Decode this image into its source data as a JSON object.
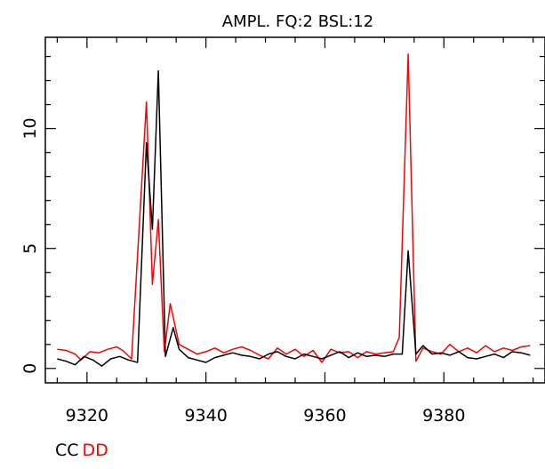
{
  "chart_data": {
    "type": "line",
    "title": "AMPL.  FQ:2  BSL:12",
    "xlabel": "",
    "ylabel": "",
    "xlim": [
      9313,
      9397
    ],
    "ylim": [
      -0.6,
      13.8
    ],
    "x_ticks": [
      9320,
      9340,
      9360,
      9380
    ],
    "y_ticks": [
      0,
      5,
      10
    ],
    "grid": false,
    "colors": {
      "CC": "#000000",
      "DD": "#ff0000"
    },
    "series": [
      {
        "name": "CC",
        "color": "#000000",
        "points": [
          [
            9315.0,
            0.4
          ],
          [
            9316.5,
            0.3
          ],
          [
            9318.0,
            0.15
          ],
          [
            9319.5,
            0.5
          ],
          [
            9321.0,
            0.35
          ],
          [
            9322.5,
            0.1
          ],
          [
            9324.0,
            0.4
          ],
          [
            9325.5,
            0.5
          ],
          [
            9327.0,
            0.35
          ],
          [
            9328.5,
            0.25
          ],
          [
            9330.0,
            9.4
          ],
          [
            9331.0,
            5.8
          ],
          [
            9332.0,
            12.4
          ],
          [
            9333.2,
            0.5
          ],
          [
            9334.5,
            1.7
          ],
          [
            9335.5,
            0.8
          ],
          [
            9337.0,
            0.45
          ],
          [
            9338.5,
            0.35
          ],
          [
            9340.0,
            0.25
          ],
          [
            9341.5,
            0.45
          ],
          [
            9343.0,
            0.55
          ],
          [
            9344.5,
            0.65
          ],
          [
            9346.0,
            0.55
          ],
          [
            9347.5,
            0.5
          ],
          [
            9349.0,
            0.4
          ],
          [
            9350.5,
            0.6
          ],
          [
            9352.0,
            0.7
          ],
          [
            9353.5,
            0.5
          ],
          [
            9355.0,
            0.4
          ],
          [
            9356.5,
            0.6
          ],
          [
            9358.0,
            0.5
          ],
          [
            9359.5,
            0.4
          ],
          [
            9361.0,
            0.55
          ],
          [
            9362.5,
            0.7
          ],
          [
            9364.0,
            0.45
          ],
          [
            9365.5,
            0.65
          ],
          [
            9367.0,
            0.5
          ],
          [
            9368.5,
            0.55
          ],
          [
            9370.0,
            0.5
          ],
          [
            9371.5,
            0.6
          ],
          [
            9373.0,
            0.6
          ],
          [
            9374.0,
            4.9
          ],
          [
            9375.3,
            0.6
          ],
          [
            9376.5,
            0.95
          ],
          [
            9378.0,
            0.6
          ],
          [
            9379.5,
            0.65
          ],
          [
            9381.0,
            0.55
          ],
          [
            9382.5,
            0.7
          ],
          [
            9384.0,
            0.45
          ],
          [
            9385.5,
            0.4
          ],
          [
            9387.0,
            0.5
          ],
          [
            9388.5,
            0.6
          ],
          [
            9390.0,
            0.45
          ],
          [
            9391.5,
            0.7
          ],
          [
            9393.0,
            0.65
          ],
          [
            9394.5,
            0.55
          ]
        ]
      },
      {
        "name": "DD",
        "color": "#ff0000",
        "points": [
          [
            9315.0,
            0.8
          ],
          [
            9316.5,
            0.75
          ],
          [
            9318.0,
            0.6
          ],
          [
            9319.0,
            0.35
          ],
          [
            9320.5,
            0.7
          ],
          [
            9322.0,
            0.65
          ],
          [
            9323.5,
            0.8
          ],
          [
            9325.0,
            0.9
          ],
          [
            9326.0,
            0.75
          ],
          [
            9327.5,
            0.4
          ],
          [
            9330.0,
            11.1
          ],
          [
            9331.0,
            3.5
          ],
          [
            9332.0,
            6.2
          ],
          [
            9333.0,
            0.7
          ],
          [
            9334.0,
            2.7
          ],
          [
            9335.5,
            1.0
          ],
          [
            9337.0,
            0.8
          ],
          [
            9338.5,
            0.6
          ],
          [
            9340.0,
            0.7
          ],
          [
            9341.5,
            0.85
          ],
          [
            9343.0,
            0.65
          ],
          [
            9344.5,
            0.8
          ],
          [
            9346.0,
            0.9
          ],
          [
            9347.5,
            0.75
          ],
          [
            9349.0,
            0.55
          ],
          [
            9350.5,
            0.4
          ],
          [
            9352.0,
            0.85
          ],
          [
            9353.5,
            0.6
          ],
          [
            9355.0,
            0.8
          ],
          [
            9356.5,
            0.5
          ],
          [
            9358.0,
            0.75
          ],
          [
            9359.5,
            0.25
          ],
          [
            9361.0,
            0.8
          ],
          [
            9362.5,
            0.65
          ],
          [
            9364.0,
            0.7
          ],
          [
            9365.5,
            0.45
          ],
          [
            9367.0,
            0.7
          ],
          [
            9368.5,
            0.6
          ],
          [
            9370.0,
            0.65
          ],
          [
            9371.5,
            0.7
          ],
          [
            9372.5,
            1.3
          ],
          [
            9374.0,
            13.1
          ],
          [
            9375.3,
            0.3
          ],
          [
            9376.5,
            0.85
          ],
          [
            9378.0,
            0.7
          ],
          [
            9379.5,
            0.6
          ],
          [
            9381.0,
            1.0
          ],
          [
            9382.5,
            0.7
          ],
          [
            9384.0,
            0.85
          ],
          [
            9385.5,
            0.65
          ],
          [
            9387.0,
            0.95
          ],
          [
            9388.5,
            0.7
          ],
          [
            9390.0,
            0.85
          ],
          [
            9391.5,
            0.75
          ],
          [
            9393.0,
            0.9
          ],
          [
            9394.5,
            0.95
          ]
        ]
      }
    ]
  }
}
